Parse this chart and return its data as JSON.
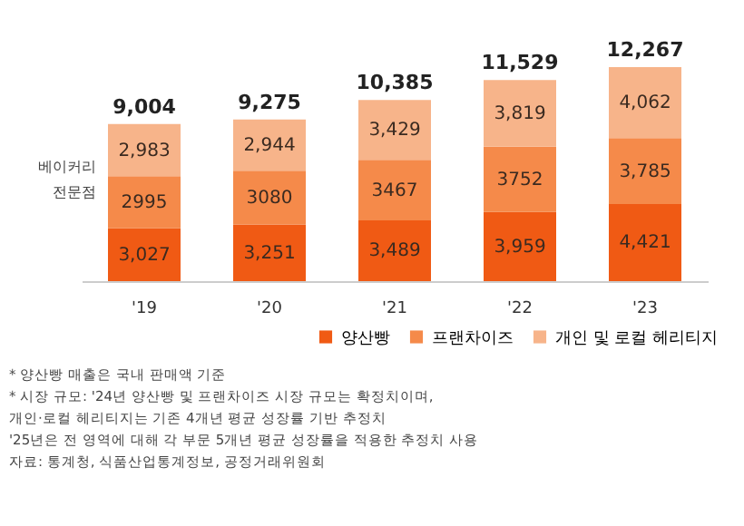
{
  "chart_data": {
    "type": "bar",
    "stacked": true,
    "categories": [
      "'19",
      "'20",
      "'21",
      "'22",
      "'23"
    ],
    "series": [
      {
        "name": "양산빵",
        "color": "#f05a14",
        "values": [
          3027,
          3251,
          3489,
          3959,
          4421
        ],
        "value_labels": [
          "3,027",
          "3,251",
          "3,489",
          "3,959",
          "4,421"
        ]
      },
      {
        "name": "프랜차이즈",
        "color": "#f58a4a",
        "values": [
          2995,
          3080,
          3467,
          3752,
          3785
        ],
        "value_labels": [
          "2995",
          "3080",
          "3467",
          "3752",
          "3,785"
        ]
      },
      {
        "name": "개인 및 로컬 헤리티지",
        "color": "#f7b48a",
        "values": [
          2983,
          2944,
          3429,
          3819,
          4062
        ],
        "value_labels": [
          "2,983",
          "2,944",
          "3,429",
          "3,819",
          "4,062"
        ]
      }
    ],
    "totals": [
      "9,004",
      "9,275",
      "10,385",
      "11,529",
      "12,267"
    ],
    "legend": "bottom right",
    "grid": false,
    "annotations": [
      "베이커리 전문점",
      "* 양산빵 매출은 국내 판매액 기준",
      "* 시장 규모: '24년 양산빵 및 프랜차이즈 시장 규모는 확정치이며,",
      "   개인·로컬 헤리티지는 기존 4개년 평균 성장률 기반 추정치",
      "   '25년은 전 영역에 대해 각 부문 5개년 평균 성장률을 적용한 추정치 사용",
      "자료: 통계청, 식품산업통계정보, 공정거래위원회"
    ]
  }
}
